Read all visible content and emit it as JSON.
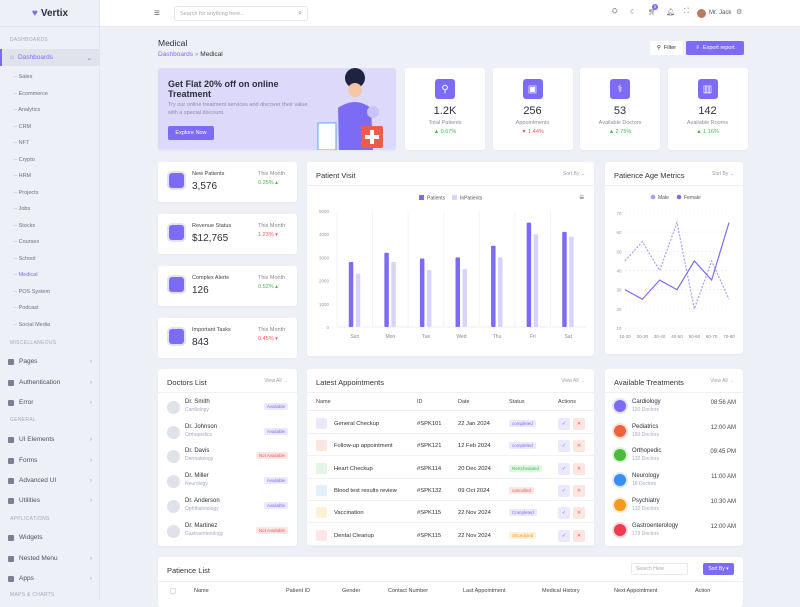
{
  "app": {
    "name": "Vertix"
  },
  "sidebar": {
    "sections": [
      "DASHBOARDS",
      "MISCELLANEOUS",
      "GENERAL",
      "APPLICATIONS",
      "MAPS & CHARTS"
    ],
    "active": "Dashboards",
    "sub_items": [
      "Sales",
      "Ecommerce",
      "Analytics",
      "CRM",
      "NFT",
      "Crypto",
      "HRM",
      "Projects",
      "Jobs",
      "Stocks",
      "Courses",
      "School",
      "Medical",
      "POS System",
      "Podcast",
      "Social Media"
    ],
    "misc": [
      "Pages",
      "Authentication",
      "Error"
    ],
    "general": [
      "UI Elements",
      "Forms",
      "Advanced UI",
      "Utilities"
    ],
    "apps": [
      "Widgets",
      "Nested Menu",
      "Apps"
    ]
  },
  "header": {
    "search_placeholder": "Search for anything here...",
    "cart_count": "5",
    "user": "Mr. Jack"
  },
  "page": {
    "title": "Medical",
    "breadcrumb": [
      "Dashboards",
      "Medical"
    ],
    "filter": "Filter",
    "export": "Export report"
  },
  "banner": {
    "title": "Get Flat 20% off on online Treatment",
    "text": "Try our online treatment services and discover their value with a special discount.",
    "button": "Explore Now"
  },
  "stats": [
    {
      "value": "1.2K",
      "label": "Total Patients",
      "change": "▲ 0.67%",
      "up": true
    },
    {
      "value": "256",
      "label": "Appointments",
      "change": "▼ 1.44%",
      "up": false
    },
    {
      "value": "53",
      "label": "Available Doctors",
      "change": "▲ 2.75%",
      "up": true
    },
    {
      "value": "142",
      "label": "Available Rooms",
      "change": "▲ 1.16%",
      "up": true
    }
  ],
  "mini": [
    {
      "label": "New Patients",
      "value": "3,576",
      "period": "This Month",
      "change": "0.25% ▴",
      "up": true
    },
    {
      "label": "Revenue Status",
      "value": "$12,765",
      "period": "This Month",
      "change": "1.23% ▾",
      "up": false
    },
    {
      "label": "Complex Alerts",
      "value": "126",
      "period": "This Month",
      "change": "0.52% ▴",
      "up": true
    },
    {
      "label": "Important Tasks",
      "value": "843",
      "period": "This Month",
      "change": "0.45% ▾",
      "up": false
    }
  ],
  "sort_by": "Sort By",
  "view_all": "View All →",
  "chart_data": [
    {
      "type": "bar",
      "title": "Patient Visit",
      "categories": [
        "Sun",
        "Mon",
        "Tue",
        "Wed",
        "Thu",
        "Fri",
        "Sat"
      ],
      "series": [
        {
          "name": "Patients",
          "color": "#7c6cf5",
          "values": [
            2800,
            3200,
            2950,
            3000,
            3500,
            4500,
            4100
          ]
        },
        {
          "name": "InPatients",
          "color": "#d8d3fb",
          "values": [
            2300,
            2800,
            2450,
            2500,
            3000,
            4000,
            3900
          ]
        }
      ],
      "yticks": [
        "0",
        "1000",
        "2000",
        "3000",
        "4000",
        "5000"
      ],
      "ylim": [
        0,
        5000
      ],
      "legend": "top"
    },
    {
      "type": "line",
      "title": "Patience Age Metrics",
      "categories": [
        "10-20",
        "20-30",
        "30-40",
        "40-50",
        "50-60",
        "60-70",
        "70-80"
      ],
      "series": [
        {
          "name": "Male",
          "color": "#a99cf7",
          "dashed": true,
          "values": [
            45,
            55,
            40,
            65,
            20,
            45,
            25
          ]
        },
        {
          "name": "Female",
          "color": "#7c6cf5",
          "values": [
            30,
            25,
            35,
            30,
            45,
            35,
            65
          ]
        }
      ],
      "yticks": [
        "10",
        "20",
        "30",
        "40",
        "50",
        "60",
        "70"
      ],
      "ylim": [
        10,
        70
      ],
      "legend": "top"
    }
  ],
  "doctors": {
    "title": "Doctors List",
    "items": [
      {
        "name": "Dr. Smith",
        "spec": "Cardiology",
        "status": "Available",
        "ok": true
      },
      {
        "name": "Dr. Johnson",
        "spec": "Orthopedics",
        "status": "Available",
        "ok": true
      },
      {
        "name": "Dr. Davis",
        "spec": "Dermatology",
        "status": "Not Available",
        "ok": false
      },
      {
        "name": "Dr. Miller",
        "spec": "Neurology",
        "status": "Available",
        "ok": true
      },
      {
        "name": "Dr. Anderson",
        "spec": "Ophthalmology",
        "status": "Available",
        "ok": true
      },
      {
        "name": "Dr. Martinez",
        "spec": "Gastroenterology",
        "status": "Not Available",
        "ok": false
      }
    ]
  },
  "appointments": {
    "title": "Latest Appointments",
    "columns": [
      "Name",
      "ID",
      "Date",
      "Status",
      "Actions"
    ],
    "rows": [
      {
        "name": "General Checkup",
        "id": "#SPK101",
        "date": "22 Jan 2024",
        "status": "completed",
        "color": "#7c6cf5",
        "bg": "#ebe8fe"
      },
      {
        "name": "Follow-up appointment",
        "id": "#SPK121",
        "date": "12 Feb 2024",
        "status": "completed",
        "color": "#7c6cf5",
        "bg": "#ebe8fe"
      },
      {
        "name": "Heart Checkup",
        "id": "#SPK114",
        "date": "20 Dec 2024",
        "status": "ReScheduled",
        "color": "#3cb94e",
        "bg": "#e3f6e5"
      },
      {
        "name": "Blood test results review",
        "id": "#SPK132",
        "date": "09 Oct 2024",
        "status": "cancelled",
        "color": "#f05a5a",
        "bg": "#fde5e5"
      },
      {
        "name": "Vaccination",
        "id": "#SPK115",
        "date": "22 Nov 2024",
        "status": "Completed",
        "color": "#7c6cf5",
        "bg": "#ebe8fe"
      },
      {
        "name": "Dental Cleanup",
        "id": "#SPK115",
        "date": "22 Nov 2024",
        "status": "Shceduled",
        "color": "#f0a020",
        "bg": "#fff0d6"
      }
    ]
  },
  "treatments": {
    "title": "Available Treatments",
    "items": [
      {
        "name": "Cardiology",
        "count": "120 Doctors",
        "time": "08:56 AM",
        "color": "#7c6cf5"
      },
      {
        "name": "Pediatrics",
        "count": "150 Doctors",
        "time": "12:00 AM",
        "color": "#f0623c"
      },
      {
        "name": "Orthopedic",
        "count": "132 Doctors",
        "time": "09:45 PM",
        "color": "#4cbb3a"
      },
      {
        "name": "Neurology",
        "count": "16 Doctors",
        "time": "11:00 AM",
        "color": "#3a8ef0"
      },
      {
        "name": "Psychiatry",
        "count": "132 Doctors",
        "time": "10:30 AM",
        "color": "#f39a1a"
      },
      {
        "name": "Gastroenterology",
        "count": "173 Doctors",
        "time": "12:00 AM",
        "color": "#ef3b4f"
      }
    ]
  },
  "patients": {
    "title": "Patience List",
    "search_placeholder": "Search Here",
    "sort": "Sort By ▾",
    "columns": [
      "Name",
      "Patient ID",
      "Gender",
      "Contact Number",
      "Last Appointment",
      "Medical History",
      "Next Appointment",
      "Action"
    ]
  }
}
